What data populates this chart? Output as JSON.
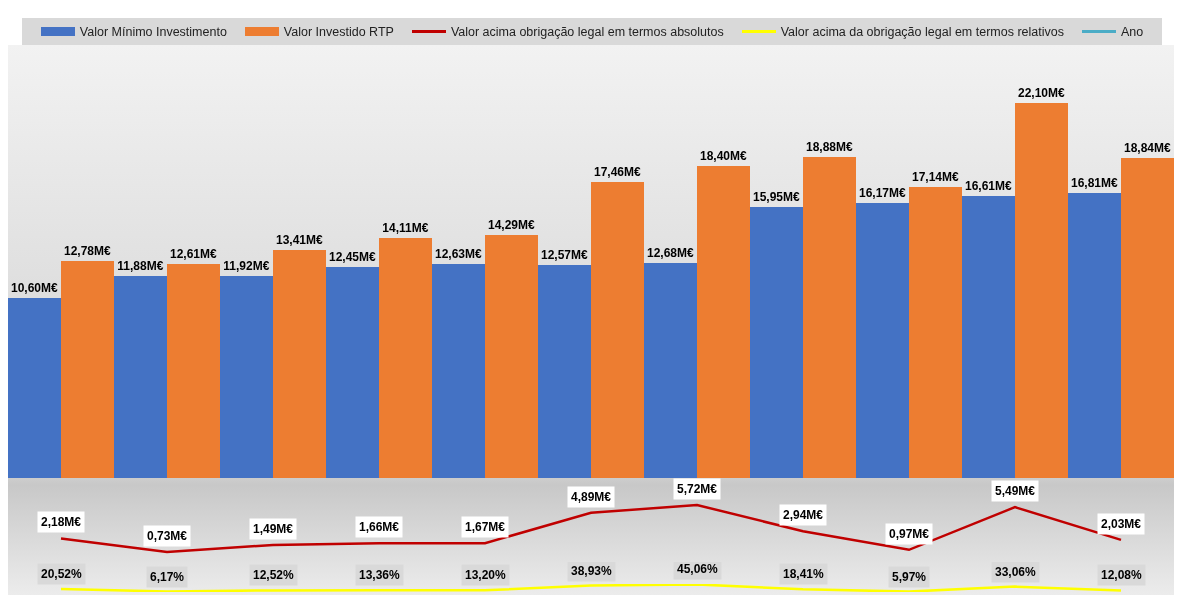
{
  "chart_data": [
    {
      "type": "bar",
      "categories": [
        null,
        null,
        null,
        null,
        null,
        null,
        null,
        null,
        null,
        null,
        null
      ],
      "series": [
        {
          "name": "Valor Mínimo Investimento",
          "color": "#4472c4",
          "values": [
            10.6,
            11.88,
            11.92,
            12.45,
            12.63,
            12.57,
            12.68,
            15.95,
            16.17,
            16.61,
            16.81
          ],
          "value_labels": [
            "10,60M€",
            "11,88M€",
            "11,92M€",
            "12,45M€",
            "12,63M€",
            "12,57M€",
            "12,68M€",
            "15,95M€",
            "16,17M€",
            "16,61M€",
            "16,81M€"
          ]
        },
        {
          "name": "Valor Investido RTP",
          "color": "#ed7d31",
          "values": [
            12.78,
            12.61,
            13.41,
            14.11,
            14.29,
            17.46,
            18.4,
            18.88,
            17.14,
            22.1,
            18.84
          ],
          "value_labels": [
            "12,78M€",
            "12,61M€",
            "13,41M€",
            "14,11M€",
            "14,29M€",
            "17,46M€",
            "18,40M€",
            "18,88M€",
            "17,14M€",
            "22,10M€",
            "18,84M€"
          ]
        }
      ],
      "ylim": [
        0,
        25.5
      ],
      "tick_labels": false,
      "grid": false,
      "legend": "top"
    },
    {
      "type": "line",
      "categories": [
        null,
        null,
        null,
        null,
        null,
        null,
        null,
        null,
        null,
        null,
        null
      ],
      "series": [
        {
          "name": "Valor acima obrigação legal em termos absolutos",
          "color": "#c00000",
          "values": [
            2.18,
            0.73,
            1.49,
            1.66,
            1.67,
            4.89,
            5.72,
            2.94,
            0.97,
            5.49,
            2.03
          ],
          "value_labels": [
            "2,18M€",
            "0,73M€",
            "1,49M€",
            "1,66M€",
            "1,67M€",
            "4,89M€",
            "5,72M€",
            "2,94M€",
            "0,97M€",
            "5,49M€",
            "2,03M€"
          ]
        }
      ],
      "tick_labels": false,
      "grid": false,
      "legend": "top",
      "marker": "none",
      "line_style": "solid"
    },
    {
      "type": "line",
      "categories": [
        null,
        null,
        null,
        null,
        null,
        null,
        null,
        null,
        null,
        null,
        null
      ],
      "series": [
        {
          "name": "Valor acima da obrigação legal em termos relativos",
          "color": "#ffff00",
          "values": [
            20.52,
            6.17,
            12.52,
            13.36,
            13.2,
            38.93,
            45.06,
            18.41,
            5.97,
            33.06,
            12.08
          ],
          "value_labels": [
            "20,52%",
            "6,17%",
            "12,52%",
            "13,36%",
            "13,20%",
            "38,93%",
            "45,06%",
            "18,41%",
            "5,97%",
            "33,06%",
            "12,08%"
          ]
        },
        {
          "name": "Ano",
          "color": "#4bacc6",
          "values": [
            null,
            null,
            null,
            null,
            null,
            null,
            null,
            null,
            null,
            null,
            null
          ]
        }
      ],
      "tick_labels": false,
      "grid": false,
      "legend": "top",
      "marker": "none",
      "line_style": "solid"
    }
  ]
}
